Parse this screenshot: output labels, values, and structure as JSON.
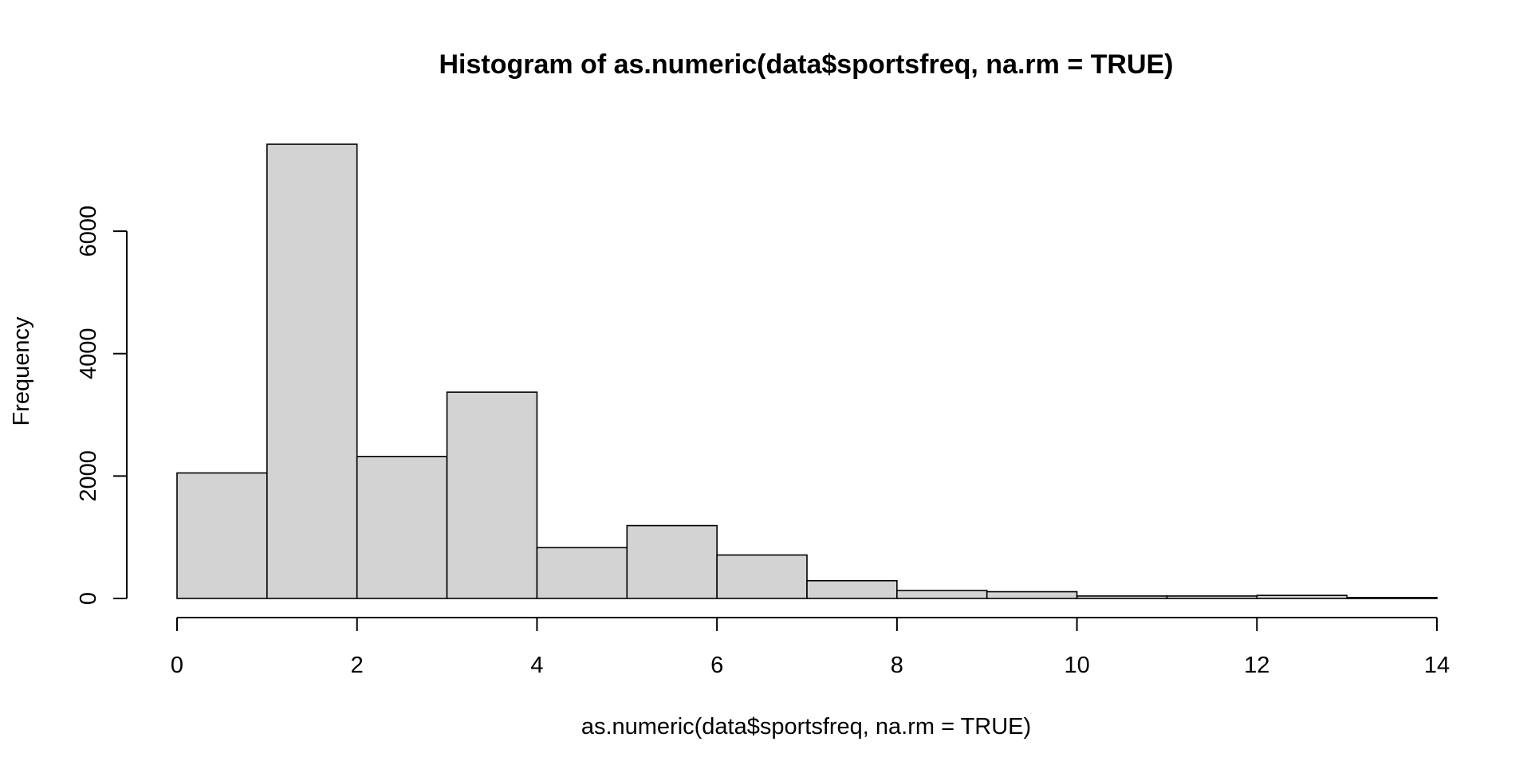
{
  "chart_data": {
    "type": "bar",
    "title": "Histogram of as.numeric(data$sportsfreq, na.rm = TRUE)",
    "xlabel": "as.numeric(data$sportsfreq, na.rm = TRUE)",
    "ylabel": "Frequency",
    "bin_edges": [
      0,
      1,
      2,
      3,
      4,
      5,
      6,
      7,
      8,
      9,
      10,
      11,
      12,
      13,
      14
    ],
    "values": [
      2050,
      7420,
      2320,
      3370,
      830,
      1190,
      710,
      290,
      130,
      110,
      40,
      40,
      50,
      15
    ],
    "xlim": [
      0,
      14
    ],
    "ylim": [
      0,
      7420
    ],
    "x_ticks": [
      0,
      2,
      4,
      6,
      8,
      10,
      12,
      14
    ],
    "x_tick_labels": [
      "0",
      "2",
      "4",
      "6",
      "8",
      "10",
      "12",
      "14"
    ],
    "y_ticks": [
      0,
      2000,
      4000,
      6000
    ],
    "y_tick_labels": [
      "0",
      "2000",
      "4000",
      "6000"
    ],
    "grid": false,
    "legend": "none",
    "colors": {
      "bar_fill": "#d3d3d3",
      "bar_stroke": "#000000",
      "axis": "#000000",
      "background": "#ffffff"
    }
  }
}
